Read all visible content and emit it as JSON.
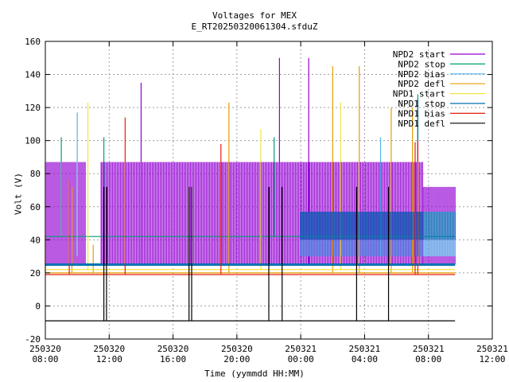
{
  "chart_data": {
    "type": "line",
    "title": "Voltages for MEX",
    "subtitle": "E_RT20250320061304.sfduZ",
    "xlabel": "Time (yymmdd HH:MM)",
    "ylabel": "Volt (V)",
    "ylim": [
      -20,
      160
    ],
    "yticks": [
      -20,
      0,
      20,
      40,
      60,
      80,
      100,
      120,
      140,
      160
    ],
    "xlim": [
      "2025-03-20 08:00",
      "2025-03-21 12:00"
    ],
    "xticks": [
      {
        "t": "2025-03-20 08:00",
        "date": "250320",
        "time": "08:00"
      },
      {
        "t": "2025-03-20 12:00",
        "date": "250320",
        "time": "12:00"
      },
      {
        "t": "2025-03-20 16:00",
        "date": "250320",
        "time": "16:00"
      },
      {
        "t": "2025-03-20 20:00",
        "date": "250320",
        "time": "20:00"
      },
      {
        "t": "2025-03-21 00:00",
        "date": "250321",
        "time": "00:00"
      },
      {
        "t": "2025-03-21 04:00",
        "date": "250321",
        "time": "04:00"
      },
      {
        "t": "2025-03-21 08:00",
        "date": "250321",
        "time": "08:00"
      },
      {
        "t": "2025-03-21 12:00",
        "date": "250321",
        "time": "12:00"
      }
    ],
    "grid": true,
    "legend_position": "top-right",
    "series": [
      {
        "name": "NPD2 start",
        "color": "#9400d3",
        "bands": [
          {
            "start": "2025-03-20 08:00",
            "end": "2025-03-20 10:30",
            "low": 25,
            "high": 87
          },
          {
            "start": "2025-03-20 11:30",
            "end": "2025-03-21 07:40",
            "low": 25,
            "high": 87
          },
          {
            "start": "2025-03-21 07:40",
            "end": "2025-03-21 09:40",
            "low": 25,
            "high": 72
          }
        ],
        "spikes": [
          {
            "t": "2025-03-20 14:00",
            "v": 135
          },
          {
            "t": "2025-03-20 22:40",
            "v": 150
          },
          {
            "t": "2025-03-21 00:30",
            "v": 150
          }
        ]
      },
      {
        "name": "NPD2 stop",
        "color": "#009e73",
        "level": 42,
        "spikes": [
          {
            "t": "2025-03-20 09:00",
            "v": 102
          },
          {
            "t": "2025-03-20 11:40",
            "v": 102
          },
          {
            "t": "2025-03-20 22:20",
            "v": 102
          },
          {
            "t": "2025-03-21 07:20",
            "v": 128
          }
        ]
      },
      {
        "name": "NPD2 bias",
        "color": "#56b4e9",
        "bands": [
          {
            "start": "2025-03-21 00:00",
            "end": "2025-03-21 09:40",
            "low": 30,
            "high": 57
          }
        ],
        "spikes": [
          {
            "t": "2025-03-20 10:00",
            "v": 117
          },
          {
            "t": "2025-03-21 05:00",
            "v": 102
          }
        ]
      },
      {
        "name": "NPD2 defl",
        "color": "#e69f00",
        "level": 20,
        "spikes": [
          {
            "t": "2025-03-20 08:00",
            "v": 42
          },
          {
            "t": "2025-03-20 09:40",
            "v": 72
          },
          {
            "t": "2025-03-20 11:00",
            "v": 37
          },
          {
            "t": "2025-03-20 19:30",
            "v": 123
          },
          {
            "t": "2025-03-21 02:00",
            "v": 145
          },
          {
            "t": "2025-03-21 03:40",
            "v": 145
          },
          {
            "t": "2025-03-21 05:40",
            "v": 120
          },
          {
            "t": "2025-03-21 07:00",
            "v": 120
          }
        ]
      },
      {
        "name": "NPD1 start",
        "color": "#f0e442",
        "level": 22,
        "spikes": [
          {
            "t": "2025-03-20 10:40",
            "v": 123
          },
          {
            "t": "2025-03-20 21:30",
            "v": 107
          },
          {
            "t": "2025-03-21 02:30",
            "v": 123
          }
        ]
      },
      {
        "name": "NPD1 stop",
        "color": "#0072b2",
        "level": 25,
        "bands": [
          {
            "start": "2025-03-21 00:00",
            "end": "2025-03-21 09:40",
            "low": 40,
            "high": 57
          }
        ],
        "spikes": [
          {
            "t": "2025-03-21 07:20",
            "v": 125
          }
        ]
      },
      {
        "name": "NPD1 bias",
        "color": "#e51e10",
        "level": 19,
        "spikes": [
          {
            "t": "2025-03-20 09:30",
            "v": 76
          },
          {
            "t": "2025-03-20 13:00",
            "v": 114
          },
          {
            "t": "2025-03-20 19:00",
            "v": 98
          },
          {
            "t": "2025-03-21 07:10",
            "v": 99
          },
          {
            "t": "2025-03-21 07:20",
            "v": 100
          }
        ]
      },
      {
        "name": "NPD1 defl",
        "color": "#000000",
        "level": -9,
        "spikes": [
          {
            "t": "2025-03-20 11:40",
            "v": 72
          },
          {
            "t": "2025-03-20 11:50",
            "v": 72
          },
          {
            "t": "2025-03-20 17:00",
            "v": 72
          },
          {
            "t": "2025-03-20 17:10",
            "v": 72
          },
          {
            "t": "2025-03-20 22:00",
            "v": 72
          },
          {
            "t": "2025-03-20 22:50",
            "v": 72
          },
          {
            "t": "2025-03-21 03:30",
            "v": 72
          },
          {
            "t": "2025-03-21 05:30",
            "v": 72
          }
        ]
      }
    ]
  }
}
